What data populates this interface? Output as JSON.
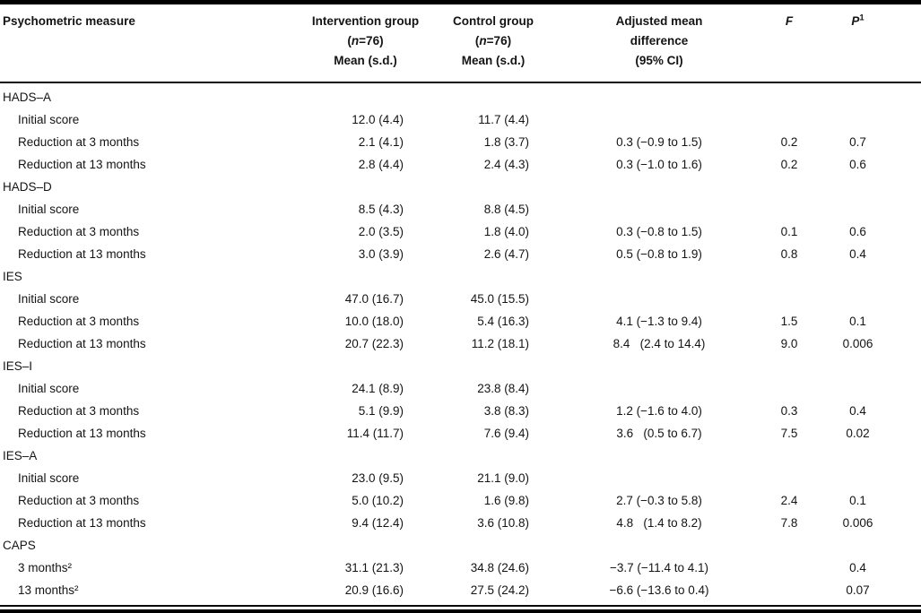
{
  "table": {
    "header": {
      "measure": "Psychometric measure",
      "intervention_line1": "Intervention group",
      "control_line1": "Control group",
      "n_open": "(",
      "n_italic": "n",
      "n_rest": "=76)",
      "mean_sd": "Mean (s.d.)",
      "diff_line1": "Adjusted mean",
      "diff_line2": "difference",
      "diff_line3": "(95% CI)",
      "f_label": "F",
      "p_label": "P",
      "p_sup": "1"
    },
    "sections": [
      {
        "label": "HADS–A",
        "rows": [
          {
            "measure": "Initial score",
            "intervention": "12.0 (4.4)",
            "control": "11.7 (4.4)",
            "diff": "",
            "f": "",
            "p": ""
          },
          {
            "measure": "Reduction at 3 months",
            "intervention": "2.1 (4.1)",
            "control": "1.8 (3.7)",
            "diff": "0.3 (−0.9 to 1.5)",
            "f": "0.2",
            "p": "0.7"
          },
          {
            "measure": "Reduction at 13 months",
            "intervention": "2.8 (4.4)",
            "control": "2.4 (4.3)",
            "diff": "0.3 (−1.0 to 1.6)",
            "f": "0.2",
            "p": "0.6"
          }
        ]
      },
      {
        "label": "HADS–D",
        "rows": [
          {
            "measure": "Initial score",
            "intervention": "8.5 (4.3)",
            "control": "8.8 (4.5)",
            "diff": "",
            "f": "",
            "p": ""
          },
          {
            "measure": "Reduction at 3 months",
            "intervention": "2.0 (3.5)",
            "control": "1.8 (4.0)",
            "diff": "0.3 (−0.8 to 1.5)",
            "f": "0.1",
            "p": "0.6"
          },
          {
            "measure": "Reduction at 13 months",
            "intervention": "3.0 (3.9)",
            "control": "2.6 (4.7)",
            "diff": "0.5 (−0.8 to 1.9)",
            "f": "0.8",
            "p": "0.4"
          }
        ]
      },
      {
        "label": "IES",
        "rows": [
          {
            "measure": "Initial score",
            "intervention": "47.0 (16.7)",
            "control": "45.0 (15.5)",
            "diff": "",
            "f": "",
            "p": ""
          },
          {
            "measure": "Reduction at 3 months",
            "intervention": "10.0 (18.0)",
            "control": "5.4 (16.3)",
            "diff": "4.1 (−1.3 to 9.4)",
            "f": "1.5",
            "p": "0.1"
          },
          {
            "measure": "Reduction at 13 months",
            "intervention": "20.7 (22.3)",
            "control": "11.2 (18.1)",
            "diff": "8.4   (2.4 to 14.4)",
            "f": "9.0",
            "p": "0.006"
          }
        ]
      },
      {
        "label": "IES–I",
        "rows": [
          {
            "measure": "Initial score",
            "intervention": "24.1 (8.9)",
            "control": "23.8 (8.4)",
            "diff": "",
            "f": "",
            "p": ""
          },
          {
            "measure": "Reduction at 3 months",
            "intervention": "5.1 (9.9)",
            "control": "3.8 (8.3)",
            "diff": "1.2 (−1.6 to 4.0)",
            "f": "0.3",
            "p": "0.4"
          },
          {
            "measure": "Reduction at 13 months",
            "intervention": "11.4 (11.7)",
            "control": "7.6 (9.4)",
            "diff": "3.6   (0.5 to 6.7)",
            "f": "7.5",
            "p": "0.02"
          }
        ]
      },
      {
        "label": "IES–A",
        "rows": [
          {
            "measure": "Initial score",
            "intervention": "23.0 (9.5)",
            "control": "21.1 (9.0)",
            "diff": "",
            "f": "",
            "p": ""
          },
          {
            "measure": "Reduction at 3 months",
            "intervention": "5.0 (10.2)",
            "control": "1.6 (9.8)",
            "diff": "2.7 (−0.3 to 5.8)",
            "f": "2.4",
            "p": "0.1"
          },
          {
            "measure": "Reduction at 13 months",
            "intervention": "9.4 (12.4)",
            "control": "3.6 (10.8)",
            "diff": "4.8   (1.4 to 8.2)",
            "f": "7.8",
            "p": "0.006"
          }
        ]
      },
      {
        "label": "CAPS",
        "rows": [
          {
            "measure": "3 months²",
            "intervention": "31.1 (21.3)",
            "control": "34.8 (24.6)",
            "diff": "−3.7 (−11.4 to 4.1)",
            "f": "",
            "p": "0.4"
          },
          {
            "measure": "13 months²",
            "intervention": "20.9 (16.6)",
            "control": "27.5 (24.2)",
            "diff": "−6.6 (−13.6 to 0.4)",
            "f": "",
            "p": "0.07"
          }
        ]
      }
    ]
  }
}
